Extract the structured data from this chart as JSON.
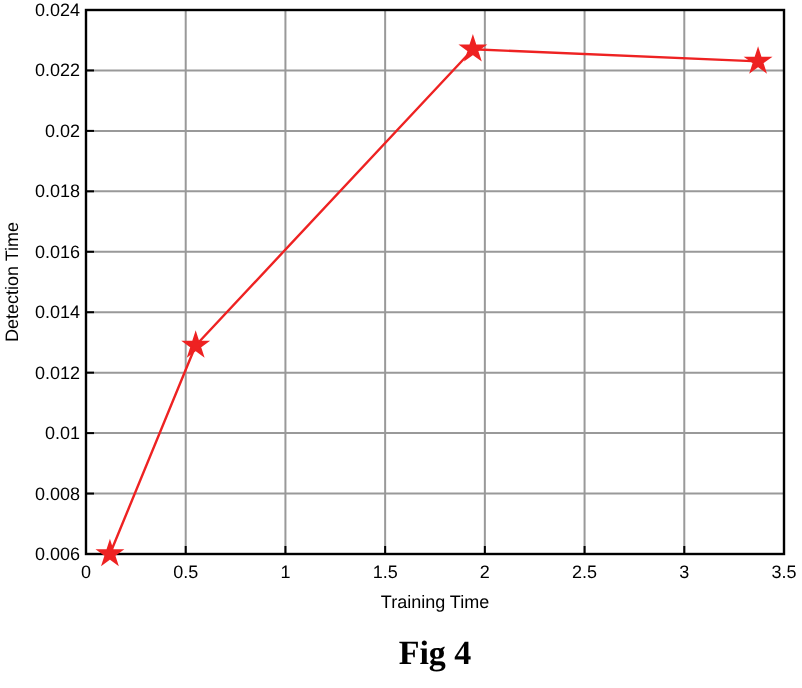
{
  "chart_data": {
    "type": "line",
    "xlabel": "Training Time",
    "ylabel": "Detection Time",
    "x": [
      0.12,
      0.55,
      1.94,
      3.37
    ],
    "series": [
      {
        "color": "#ee2222",
        "values": [
          0.006,
          0.0129,
          0.0227,
          0.0223
        ]
      }
    ],
    "xlim": [
      0,
      3.5
    ],
    "xticks": [
      0,
      0.5,
      1,
      1.5,
      2,
      2.5,
      3,
      3.5
    ],
    "ylim": [
      0.006,
      0.024
    ],
    "yticks": [
      0.006,
      0.008,
      0.01,
      0.012,
      0.014,
      0.016,
      0.018,
      0.02,
      0.022,
      0.024
    ],
    "grid": true,
    "marker": "star",
    "line_style": "solid",
    "annotations": [
      "Fig 4"
    ]
  }
}
